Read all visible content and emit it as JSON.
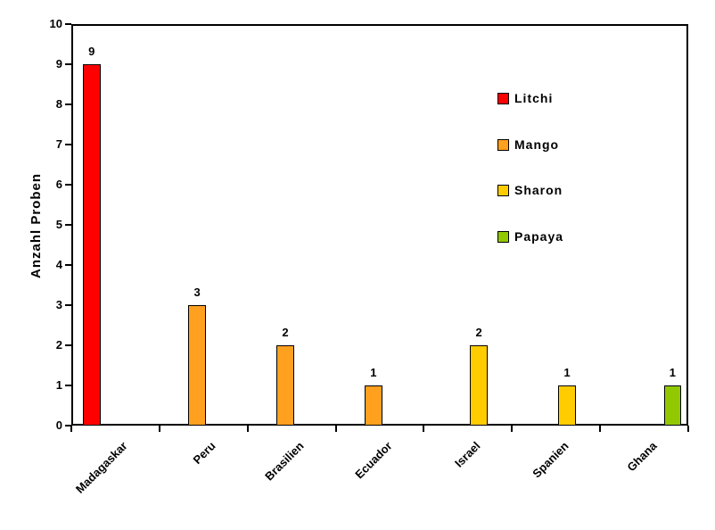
{
  "chart_data": {
    "type": "bar",
    "title": "",
    "xlabel": "",
    "ylabel": "Anzahl Proben",
    "ylim": [
      0,
      10
    ],
    "yticks": [
      0,
      1,
      2,
      3,
      4,
      5,
      6,
      7,
      8,
      9,
      10
    ],
    "grid": false,
    "legend_position": "right-inside",
    "categories": [
      "Madagaskar",
      "Peru",
      "Brasilien",
      "Ecuador",
      "Israel",
      "Spanien",
      "Ghana"
    ],
    "series": [
      {
        "name": "Litchi",
        "color": "#FF0000",
        "values": [
          9,
          null,
          null,
          null,
          null,
          null,
          null
        ]
      },
      {
        "name": "Mango",
        "color": "#FFA01E",
        "values": [
          null,
          3,
          2,
          1,
          null,
          null,
          null
        ]
      },
      {
        "name": "Sharon",
        "color": "#FFCC00",
        "values": [
          null,
          null,
          null,
          null,
          2,
          1,
          null
        ]
      },
      {
        "name": "Papaya",
        "color": "#92C800",
        "values": [
          null,
          null,
          null,
          null,
          null,
          null,
          1
        ]
      }
    ],
    "bar_value_labels": [
      9,
      3,
      2,
      1,
      2,
      1,
      1
    ],
    "axis_color": "#000000",
    "background_color": "#FFFFFF"
  }
}
